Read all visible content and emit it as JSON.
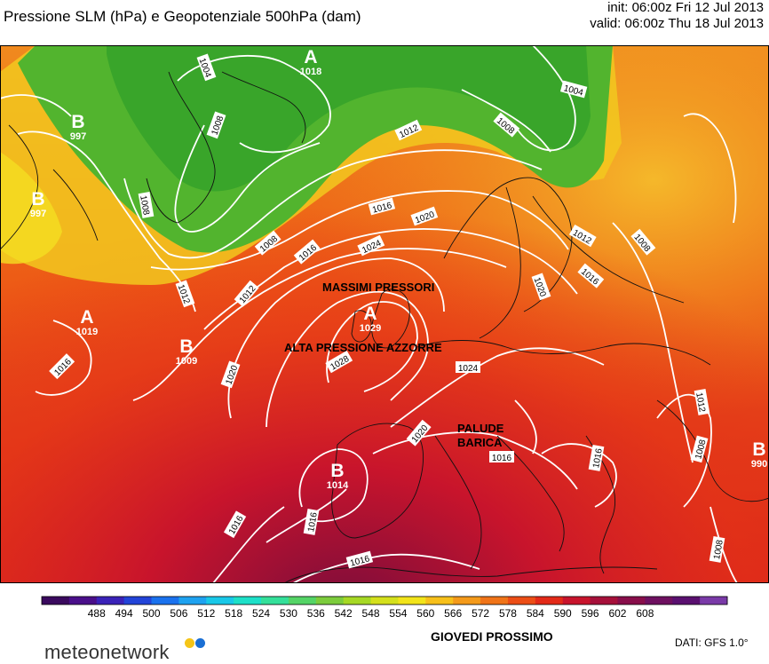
{
  "header": {
    "title": "Pressione SLM (hPa) e Geopotenziale 500hPa (dam)",
    "init": "init: 06:00z Fri 12 Jul 2013",
    "valid": "valid: 06:00z Thu 18 Jul 2013"
  },
  "map": {
    "pressure_centers": [
      {
        "type": "A",
        "value": "1018"
      },
      {
        "type": "B",
        "value": "997"
      },
      {
        "type": "B",
        "value": "997"
      },
      {
        "type": "A",
        "value": "1019"
      },
      {
        "type": "B",
        "value": "1009"
      },
      {
        "type": "A",
        "value": "1029"
      },
      {
        "type": "B",
        "value": "1014"
      },
      {
        "type": "B",
        "value": "990"
      }
    ],
    "isobar_labels": [
      "1004",
      "1008",
      "1008",
      "1012",
      "1008",
      "1004",
      "1008",
      "1012",
      "1016",
      "1020",
      "1024",
      "1016",
      "1012",
      "1008",
      "1012",
      "1016",
      "1020",
      "1028",
      "1024",
      "1020",
      "1016",
      "1012",
      "1016",
      "1020",
      "1016",
      "1016",
      "1012",
      "1008",
      "1016",
      "1008",
      "1012",
      "1008",
      "1016"
    ],
    "annotations": [
      {
        "text": "MASSIMI PRESSORI"
      },
      {
        "text": "ALTA PRESSIONE AZZORRE"
      },
      {
        "text": "PALUDE"
      },
      {
        "text": "BARICA"
      }
    ]
  },
  "colorbar": {
    "ticks": [
      "488",
      "494",
      "500",
      "506",
      "512",
      "518",
      "524",
      "530",
      "536",
      "542",
      "548",
      "554",
      "560",
      "566",
      "572",
      "578",
      "584",
      "590",
      "596",
      "602",
      "608"
    ],
    "colors": [
      "#3a0a5e",
      "#4a0f8a",
      "#3a22b8",
      "#2244d8",
      "#1a72ee",
      "#1ea2f0",
      "#19c8e8",
      "#1de0c8",
      "#34e09a",
      "#54d466",
      "#7ccc3c",
      "#a6d824",
      "#d4e01c",
      "#f2e41a",
      "#f7c01a",
      "#f49a1a",
      "#f07418",
      "#ec4e16",
      "#e32a18",
      "#c8142c",
      "#a6103a",
      "#880e4a",
      "#6e1060",
      "#5a1070",
      "#7a3aa8"
    ]
  },
  "caption": "GIOVEDI PROSSIMO",
  "source": "DATI:  GFS  1.0°",
  "logo": {
    "text": "meteonetwork",
    "dot1": "#f5c518",
    "dot2": "#1a6fd4"
  }
}
